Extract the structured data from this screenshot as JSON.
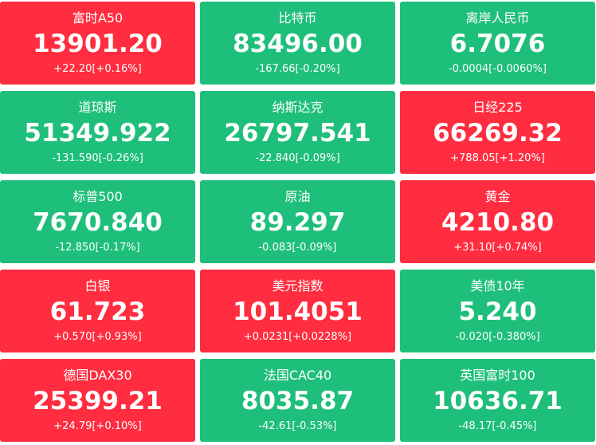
{
  "tiles": [
    {
      "name": "富时A50",
      "price": "13901.20",
      "change": "+22.20[+0.16%]",
      "trend": "up"
    },
    {
      "name": "比特币",
      "price": "83496.00",
      "change": "-167.66[-0.20%]",
      "trend": "down"
    },
    {
      "name": "离岸人民币",
      "price": "6.7076",
      "change": "-0.0004[-0.0060%]",
      "trend": "down"
    },
    {
      "name": "道琼斯",
      "price": "51349.922",
      "change": "-131.590[-0.26%]",
      "trend": "down"
    },
    {
      "name": "纳斯达克",
      "price": "26797.541",
      "change": "-22.840[-0.09%]",
      "trend": "down"
    },
    {
      "name": "日经225",
      "price": "66269.32",
      "change": "+788.05[+1.20%]",
      "trend": "up"
    },
    {
      "name": "标普500",
      "price": "7670.840",
      "change": "-12.850[-0.17%]",
      "trend": "down"
    },
    {
      "name": "原油",
      "price": "89.297",
      "change": "-0.083[-0.09%]",
      "trend": "down"
    },
    {
      "name": "黄金",
      "price": "4210.80",
      "change": "+31.10[+0.74%]",
      "trend": "up"
    },
    {
      "name": "白银",
      "price": "61.723",
      "change": "+0.570[+0.93%]",
      "trend": "up"
    },
    {
      "name": "美元指数",
      "price": "101.4051",
      "change": "+0.0231[+0.0228%]",
      "trend": "up"
    },
    {
      "name": "美债10年",
      "price": "5.240",
      "change": "-0.020[-0.380%]",
      "trend": "down"
    },
    {
      "name": "德国DAX30",
      "price": "25399.21",
      "change": "+24.79[+0.10%]",
      "trend": "up"
    },
    {
      "name": "法国CAC40",
      "price": "8035.87",
      "change": "-42.61[-0.53%]",
      "trend": "down"
    },
    {
      "name": "英国富时100",
      "price": "10636.71",
      "change": "-48.17[-0.45%]",
      "trend": "down"
    }
  ]
}
